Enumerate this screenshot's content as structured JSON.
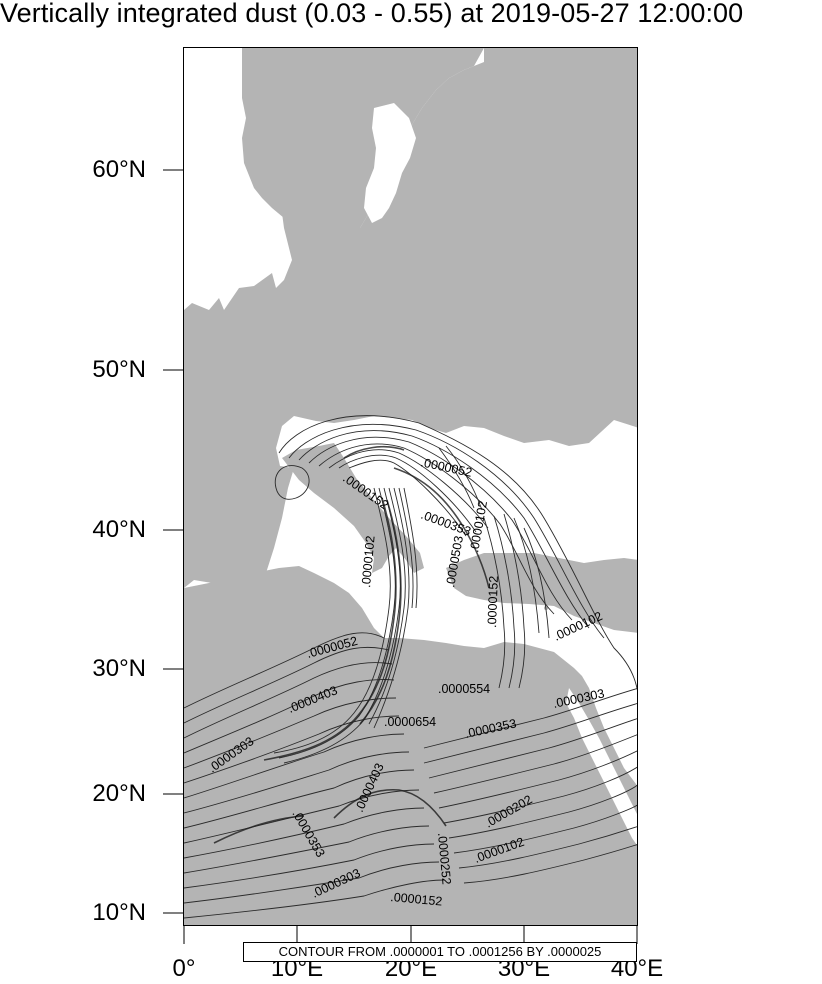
{
  "title": "Vertically integrated dust (0.03 - 0.55) at 2019-05-27 12:00:00",
  "colors": {
    "land": "#b4b4b4",
    "sea": "#ffffff",
    "contour": "#2b2b2b"
  },
  "lat_ticks": [
    {
      "text": "60°N"
    },
    {
      "text": "50°N"
    },
    {
      "text": "40°N"
    },
    {
      "text": "30°N"
    },
    {
      "text": "20°N"
    },
    {
      "text": "10°N"
    }
  ],
  "lon_ticks": [
    {
      "text": "0°"
    },
    {
      "text": "10°E"
    },
    {
      "text": "20°E"
    },
    {
      "text": "30°E"
    },
    {
      "text": "40°E"
    }
  ],
  "contour_info": "CONTOUR FROM .0000001 TO .0001256 BY .0000025",
  "contour_labels": [
    {
      "text": ".0000052",
      "rot": 12
    },
    {
      "text": ".0000152",
      "rot": 35
    },
    {
      "text": ".0000353",
      "rot": 20
    },
    {
      "text": ".0000102",
      "rot": -80
    },
    {
      "text": ".0000102",
      "rot": -85
    },
    {
      "text": ".0000503",
      "rot": -80
    },
    {
      "text": ".0000152",
      "rot": -88
    },
    {
      "text": ".0000102",
      "rot": -25
    },
    {
      "text": ".0000052",
      "rot": -15
    },
    {
      "text": ".0000403",
      "rot": -22
    },
    {
      "text": ".0000554",
      "rot": 0
    },
    {
      "text": ".0000303",
      "rot": -12
    },
    {
      "text": ".0000654",
      "rot": 0
    },
    {
      "text": ".0000353",
      "rot": -12
    },
    {
      "text": ".0000303",
      "rot": -35
    },
    {
      "text": ".0000403",
      "rot": -65
    },
    {
      "text": ".0000353",
      "rot": 60
    },
    {
      "text": ".0000202",
      "rot": -30
    },
    {
      "text": ".0000252",
      "rot": 85
    },
    {
      "text": ".0000102",
      "rot": -20
    },
    {
      "text": ".0000303",
      "rot": -25
    },
    {
      "text": ".0000152",
      "rot": 5
    }
  ]
}
